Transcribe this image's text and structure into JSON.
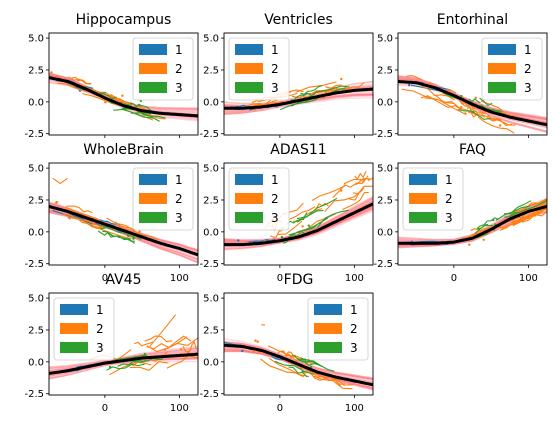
{
  "chart_data": [
    {
      "type": "line",
      "title": "Hippocampus",
      "xlim": [
        -75,
        125
      ],
      "ylim": [
        -2.6,
        5.4
      ],
      "x_ticks": [],
      "y_ticks": [
        "5.0",
        "2.5",
        "0.0",
        "-2.5"
      ],
      "legend": {
        "position": "upper right",
        "entries": [
          "1",
          "2",
          "3"
        ]
      },
      "trend_curve": {
        "x": [
          -75,
          -50,
          -25,
          0,
          25,
          50,
          75,
          100,
          125
        ],
        "y": [
          1.9,
          1.6,
          1.0,
          0.3,
          -0.3,
          -0.7,
          -0.9,
          -1.0,
          -1.1
        ]
      },
      "series": [
        {
          "name": "1",
          "color": "#1f77b4",
          "x_range": [
            -75,
            -15
          ],
          "start": 1.9,
          "end": 0.9,
          "spread": 0.4,
          "count": 5
        },
        {
          "name": "2",
          "color": "#ff7f0e",
          "x_range": [
            -75,
            60
          ],
          "start": 2.2,
          "end": -0.9,
          "spread": 0.6,
          "count": 14
        },
        {
          "name": "3",
          "color": "#2ca02c",
          "x_range": [
            -10,
            60
          ],
          "start": 0.4,
          "end": -0.8,
          "spread": 0.7,
          "count": 8
        }
      ]
    },
    {
      "type": "line",
      "title": "Ventricles",
      "xlim": [
        -75,
        125
      ],
      "ylim": [
        -2.6,
        5.4
      ],
      "x_ticks": [],
      "y_ticks": [
        "5.0",
        "2.5",
        "0.0",
        "-2.5"
      ],
      "legend": {
        "position": "upper left",
        "entries": [
          "1",
          "2",
          "3"
        ]
      },
      "trend_curve": {
        "x": [
          -75,
          -50,
          -25,
          0,
          25,
          50,
          75,
          100,
          125
        ],
        "y": [
          -0.5,
          -0.5,
          -0.4,
          -0.2,
          0.1,
          0.4,
          0.7,
          0.9,
          1.0
        ]
      },
      "series": [
        {
          "name": "1",
          "color": "#1f77b4",
          "x_range": [
            -75,
            -20
          ],
          "start": -0.6,
          "end": -0.3,
          "spread": 0.3,
          "count": 4
        },
        {
          "name": "2",
          "color": "#ff7f0e",
          "x_range": [
            -60,
            100
          ],
          "start": -0.5,
          "end": 1.4,
          "spread": 0.6,
          "count": 14
        },
        {
          "name": "3",
          "color": "#2ca02c",
          "x_range": [
            0,
            70
          ],
          "start": -0.3,
          "end": 1.0,
          "spread": 0.6,
          "count": 7
        }
      ]
    },
    {
      "type": "line",
      "title": "Entorhinal",
      "xlim": [
        -75,
        125
      ],
      "ylim": [
        -2.6,
        5.4
      ],
      "x_ticks": [],
      "y_ticks": [
        "5.0",
        "2.5",
        "0.0",
        "-2.5"
      ],
      "legend": {
        "position": "upper right",
        "entries": [
          "1",
          "2",
          "3"
        ]
      },
      "trend_curve": {
        "x": [
          -75,
          -50,
          -25,
          0,
          25,
          50,
          75,
          100,
          125
        ],
        "y": [
          1.6,
          1.5,
          1.1,
          0.5,
          -0.2,
          -0.8,
          -1.2,
          -1.5,
          -1.8
        ]
      },
      "series": [
        {
          "name": "1",
          "color": "#1f77b4",
          "x_range": [
            -75,
            -20
          ],
          "start": 1.6,
          "end": 1.0,
          "spread": 0.3,
          "count": 4
        },
        {
          "name": "2",
          "color": "#ff7f0e",
          "x_range": [
            -70,
            70
          ],
          "start": 1.8,
          "end": -1.4,
          "spread": 0.9,
          "count": 18
        },
        {
          "name": "3",
          "color": "#2ca02c",
          "x_range": [
            -20,
            60
          ],
          "start": 0.6,
          "end": -1.0,
          "spread": 0.8,
          "count": 8
        }
      ]
    },
    {
      "type": "line",
      "title": "WholeBrain",
      "xlim": [
        -75,
        125
      ],
      "ylim": [
        -2.6,
        5.4
      ],
      "x_ticks": [
        "0",
        "100"
      ],
      "y_ticks": [
        "5.0",
        "2.5",
        "0.0",
        "-2.5"
      ],
      "legend": {
        "position": "upper right",
        "entries": [
          "1",
          "2",
          "3"
        ]
      },
      "trend_curve": {
        "x": [
          -75,
          -50,
          -25,
          0,
          25,
          50,
          75,
          100,
          125
        ],
        "y": [
          2.0,
          1.6,
          1.1,
          0.6,
          0.1,
          -0.4,
          -0.9,
          -1.3,
          -1.8
        ]
      },
      "series": [
        {
          "name": "1",
          "color": "#1f77b4",
          "x_range": [
            -75,
            10
          ],
          "start": 2.0,
          "end": 0.4,
          "spread": 0.4,
          "count": 5
        },
        {
          "name": "2",
          "color": "#ff7f0e",
          "x_range": [
            -70,
            60
          ],
          "start": 2.1,
          "end": -0.6,
          "spread": 0.6,
          "count": 14
        },
        {
          "name": "3",
          "color": "#2ca02c",
          "x_range": [
            -10,
            60
          ],
          "start": 0.5,
          "end": -0.7,
          "spread": 0.6,
          "count": 7
        }
      ],
      "outlier_lines": [
        {
          "color": "#ff7f0e",
          "x": [
            -70,
            -60,
            -50
          ],
          "y": [
            4.2,
            3.8,
            4.2
          ]
        }
      ]
    },
    {
      "type": "line",
      "title": "ADAS11",
      "xlim": [
        -75,
        125
      ],
      "ylim": [
        -2.6,
        5.4
      ],
      "x_ticks": [
        "0",
        "100"
      ],
      "y_ticks": [
        "5.0",
        "2.5",
        "0.0",
        "-2.5"
      ],
      "legend": {
        "position": "upper left",
        "entries": [
          "1",
          "2",
          "3"
        ]
      },
      "trend_curve": {
        "x": [
          -75,
          -50,
          -25,
          0,
          25,
          50,
          75,
          100,
          125
        ],
        "y": [
          -1.0,
          -1.0,
          -0.9,
          -0.7,
          -0.4,
          0.1,
          0.8,
          1.5,
          2.2
        ]
      },
      "series": [
        {
          "name": "1",
          "color": "#1f77b4",
          "x_range": [
            -75,
            -10
          ],
          "start": -1.0,
          "end": -0.8,
          "spread": 0.3,
          "count": 4
        },
        {
          "name": "2",
          "color": "#ff7f0e",
          "x_range": [
            -40,
            120
          ],
          "start": -0.8,
          "end": 3.8,
          "spread": 1.2,
          "count": 18
        },
        {
          "name": "3",
          "color": "#2ca02c",
          "x_range": [
            0,
            90
          ],
          "start": -0.5,
          "end": 2.4,
          "spread": 0.9,
          "count": 7
        }
      ]
    },
    {
      "type": "line",
      "title": "FAQ",
      "xlim": [
        -75,
        125
      ],
      "ylim": [
        -2.6,
        5.4
      ],
      "x_ticks": [
        "0",
        "100"
      ],
      "y_ticks": [
        "5.0",
        "2.5",
        "0.0",
        "-2.5"
      ],
      "legend": {
        "position": "upper left",
        "entries": [
          "1",
          "2",
          "3"
        ]
      },
      "trend_curve": {
        "x": [
          -75,
          -50,
          -25,
          0,
          25,
          50,
          75,
          100,
          125
        ],
        "y": [
          -0.9,
          -0.9,
          -0.9,
          -0.8,
          -0.5,
          0.2,
          1.0,
          1.6,
          2.0
        ]
      },
      "series": [
        {
          "name": "1",
          "color": "#1f77b4",
          "x_range": [
            -75,
            -10
          ],
          "start": -0.9,
          "end": -0.8,
          "spread": 0.2,
          "count": 4
        },
        {
          "name": "2",
          "color": "#ff7f0e",
          "x_range": [
            10,
            125
          ],
          "start": -0.6,
          "end": 2.2,
          "spread": 0.8,
          "count": 18
        },
        {
          "name": "3",
          "color": "#2ca02c",
          "x_range": [
            20,
            110
          ],
          "start": -0.3,
          "end": 2.0,
          "spread": 0.7,
          "count": 8
        }
      ]
    },
    {
      "type": "line",
      "title": "AV45",
      "xlim": [
        -75,
        125
      ],
      "ylim": [
        -2.6,
        5.4
      ],
      "x_ticks": [
        "0",
        "100"
      ],
      "y_ticks": [
        "5.0",
        "2.5",
        "0.0",
        "-2.5"
      ],
      "legend": {
        "position": "upper left",
        "entries": [
          "1",
          "2",
          "3"
        ]
      },
      "trend_curve": {
        "x": [
          -75,
          -50,
          -25,
          0,
          25,
          50,
          75,
          100,
          125
        ],
        "y": [
          -0.9,
          -0.7,
          -0.4,
          -0.1,
          0.1,
          0.3,
          0.4,
          0.5,
          0.6
        ]
      },
      "series": [
        {
          "name": "1",
          "color": "#1f77b4",
          "x_range": [
            -75,
            0
          ],
          "start": -0.9,
          "end": -0.2,
          "spread": 0.2,
          "count": 2
        },
        {
          "name": "2",
          "color": "#ff7f0e",
          "x_range": [
            -40,
            120
          ],
          "start": -0.8,
          "end": 1.4,
          "spread": 1.4,
          "count": 11
        },
        {
          "name": "3",
          "color": "#2ca02c",
          "x_range": [
            0,
            80
          ],
          "start": -0.2,
          "end": 0.5,
          "spread": 0.6,
          "count": 5
        }
      ],
      "outlier_lines": [
        {
          "color": "#ff7f0e",
          "x": [
            60,
            80,
            95
          ],
          "y": [
            1.2,
            2.6,
            3.7
          ]
        }
      ]
    },
    {
      "type": "line",
      "title": "FDG",
      "xlim": [
        -75,
        125
      ],
      "ylim": [
        -2.6,
        5.4
      ],
      "x_ticks": [
        "0",
        "100"
      ],
      "y_ticks": [
        "5.0",
        "2.5",
        "0.0",
        "-2.5"
      ],
      "legend": {
        "position": "upper right",
        "entries": [
          "1",
          "2",
          "3"
        ]
      },
      "trend_curve": {
        "x": [
          -75,
          -50,
          -25,
          0,
          25,
          50,
          75,
          100,
          125
        ],
        "y": [
          1.3,
          1.2,
          0.9,
          0.4,
          -0.2,
          -0.8,
          -1.2,
          -1.5,
          -1.8
        ]
      },
      "series": [
        {
          "name": "1",
          "color": "#1f77b4",
          "x_range": [
            -75,
            0
          ],
          "start": 1.4,
          "end": 0.4,
          "spread": 0.3,
          "count": 3
        },
        {
          "name": "2",
          "color": "#ff7f0e",
          "x_range": [
            -50,
            80
          ],
          "start": 1.3,
          "end": -1.5,
          "spread": 0.9,
          "count": 12
        },
        {
          "name": "3",
          "color": "#2ca02c",
          "x_range": [
            -10,
            70
          ],
          "start": 0.5,
          "end": -1.2,
          "spread": 0.8,
          "count": 6
        }
      ],
      "outlier_lines": [
        {
          "color": "#ff7f0e",
          "x": [
            -25,
            -20
          ],
          "y": [
            2.9,
            2.9
          ]
        }
      ]
    }
  ],
  "colors": {
    "trend": "#000000",
    "band": "#ff6b6b",
    "band_light": "#f8b4c0"
  }
}
